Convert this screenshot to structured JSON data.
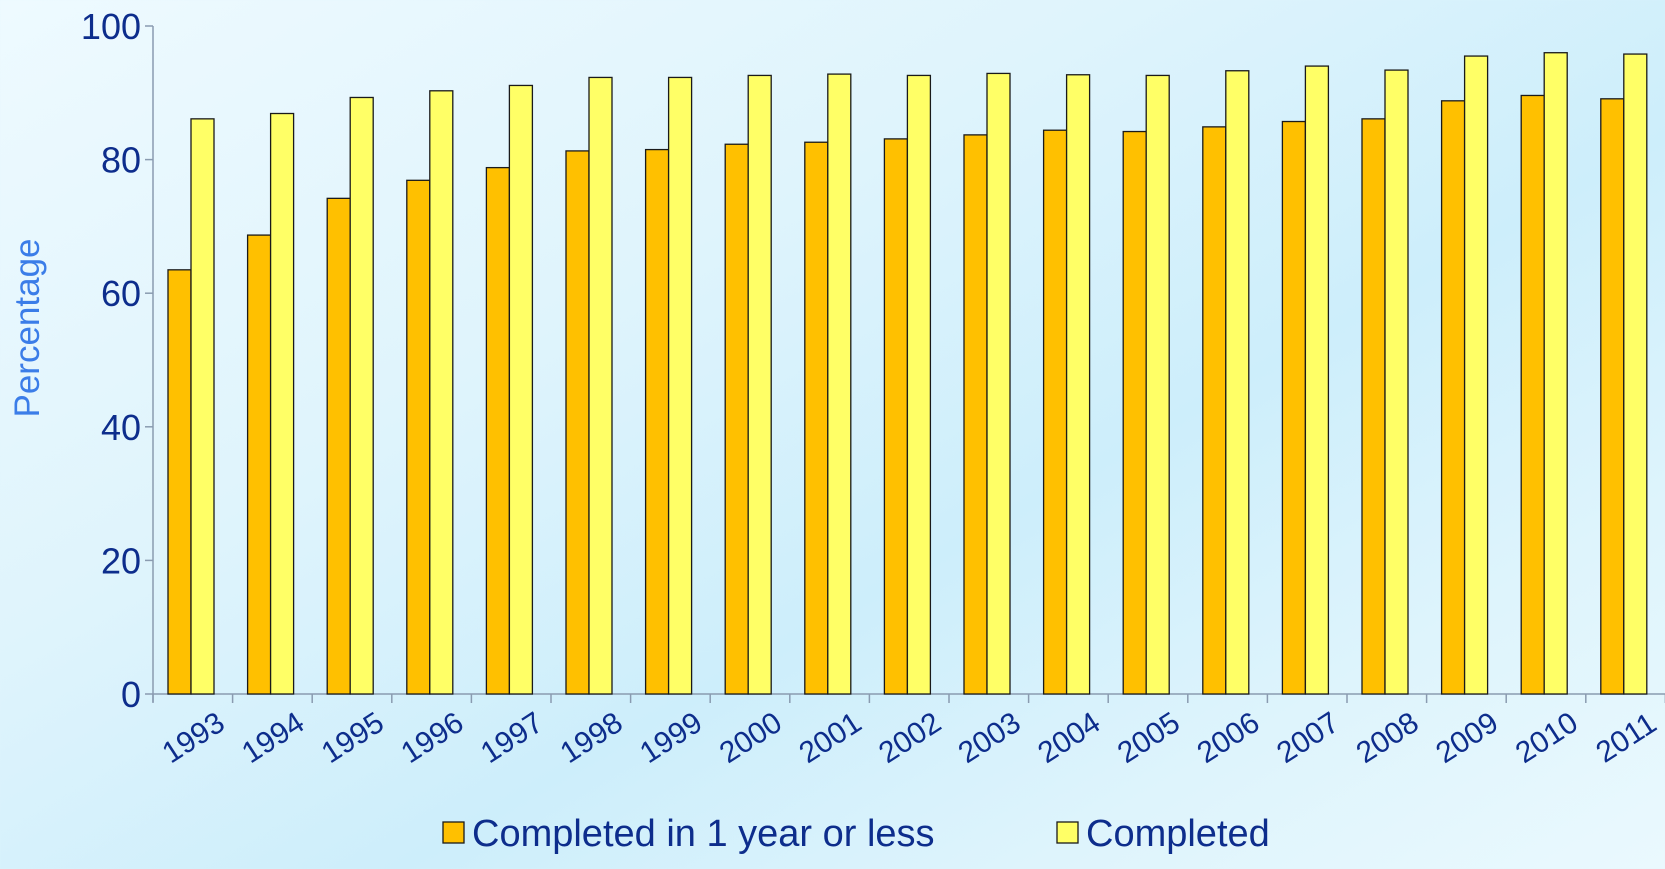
{
  "chart_data": {
    "type": "bar",
    "title": "",
    "xlabel": "",
    "ylabel": "Percentage",
    "ylim": [
      0,
      100
    ],
    "yticks": [
      "0",
      "20",
      "40",
      "60",
      "80",
      "100"
    ],
    "categories": [
      "1993",
      "1994",
      "1995",
      "1996",
      "1997",
      "1998",
      "1999",
      "2000",
      "2001",
      "2002",
      "2003",
      "2004",
      "2005",
      "2006",
      "2007",
      "2008",
      "2009",
      "2010",
      "2011"
    ],
    "series": [
      {
        "name": "Completed in 1 year or less",
        "color": "#ffc000",
        "values": [
          63.5,
          68.7,
          74.2,
          76.9,
          78.8,
          81.3,
          81.5,
          82.3,
          82.6,
          83.1,
          83.7,
          84.4,
          84.2,
          84.9,
          85.7,
          86.1,
          88.8,
          89.6,
          89.1
        ]
      },
      {
        "name": "Completed",
        "color": "#ffff66",
        "values": [
          86.1,
          86.9,
          89.3,
          90.3,
          91.1,
          92.3,
          92.3,
          92.6,
          92.8,
          92.6,
          92.9,
          92.7,
          92.6,
          93.3,
          94.0,
          93.4,
          95.5,
          96.0,
          95.8
        ]
      }
    ],
    "grid": false,
    "legend_position": "bottom",
    "colors": {
      "axis": "#8a9bb0",
      "tick_label": "#0d2d8c",
      "ylabel": "#3b7de8",
      "bar_border": "#1a1a1a"
    }
  }
}
